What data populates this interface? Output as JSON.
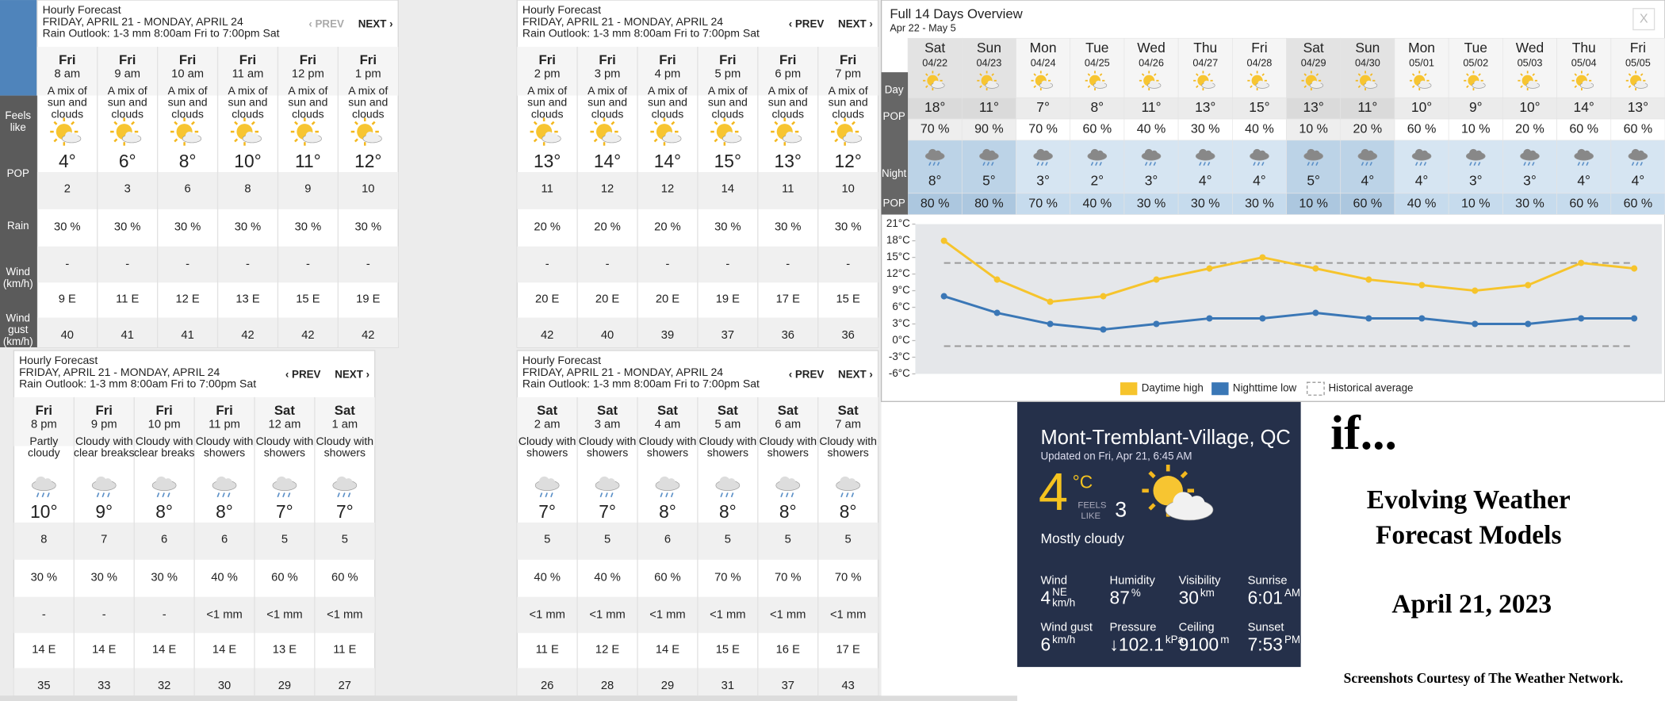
{
  "row_labels": [
    [
      "Feels",
      "like"
    ],
    [
      "POP"
    ],
    [
      "Rain"
    ],
    [
      "Wind",
      "(km/h)"
    ],
    [
      "Wind",
      "gust",
      "(km/h)"
    ]
  ],
  "hourly_panels": [
    {
      "title": "Hourly Forecast",
      "date_range": "FRIDAY, APRIL 21 - MONDAY, APRIL 24",
      "rain_outlook": "Rain Outlook: 1-3 mm 8:00am Fri to 7:00pm Sat",
      "prev": "‹ PREV",
      "next": "NEXT ›",
      "columns": [
        {
          "day": "Fri",
          "time": "8 am",
          "condition": [
            "A mix of",
            "sun and",
            "clouds"
          ],
          "temp": "4°",
          "feels_like": "2",
          "pop": "30 %",
          "rain": "-",
          "wind": "9 E",
          "gust": "40"
        },
        {
          "day": "Fri",
          "time": "9 am",
          "condition": [
            "A mix of",
            "sun and",
            "clouds"
          ],
          "temp": "6°",
          "feels_like": "3",
          "pop": "30 %",
          "rain": "-",
          "wind": "11 E",
          "gust": "41"
        },
        {
          "day": "Fri",
          "time": "10 am",
          "condition": [
            "A mix of",
            "sun and",
            "clouds"
          ],
          "temp": "8°",
          "feels_like": "6",
          "pop": "30 %",
          "rain": "-",
          "wind": "12 E",
          "gust": "41"
        },
        {
          "day": "Fri",
          "time": "11 am",
          "condition": [
            "A mix of",
            "sun and",
            "clouds"
          ],
          "temp": "10°",
          "feels_like": "8",
          "pop": "30 %",
          "rain": "-",
          "wind": "13 E",
          "gust": "42"
        },
        {
          "day": "Fri",
          "time": "12 pm",
          "condition": [
            "A mix of",
            "sun and",
            "clouds"
          ],
          "temp": "11°",
          "feels_like": "9",
          "pop": "30 %",
          "rain": "-",
          "wind": "15 E",
          "gust": "42"
        },
        {
          "day": "Fri",
          "time": "1 pm",
          "condition": [
            "A mix of",
            "sun and",
            "clouds"
          ],
          "temp": "12°",
          "feels_like": "10",
          "pop": "30 %",
          "rain": "-",
          "wind": "19 E",
          "gust": "42"
        }
      ]
    },
    {
      "title": "Hourly Forecast",
      "date_range": "FRIDAY, APRIL 21 - MONDAY, APRIL 24",
      "rain_outlook": "Rain Outlook: 1-3 mm 8:00am Fri to 7:00pm Sat",
      "prev": "‹ PREV",
      "next": "NEXT ›",
      "columns": [
        {
          "day": "Fri",
          "time": "2 pm",
          "condition": [
            "A mix of",
            "sun and",
            "clouds"
          ],
          "temp": "13°",
          "feels_like": "11",
          "pop": "20 %",
          "rain": "-",
          "wind": "20 E",
          "gust": "42"
        },
        {
          "day": "Fri",
          "time": "3 pm",
          "condition": [
            "A mix of",
            "sun and",
            "clouds"
          ],
          "temp": "14°",
          "feels_like": "12",
          "pop": "20 %",
          "rain": "-",
          "wind": "20 E",
          "gust": "40"
        },
        {
          "day": "Fri",
          "time": "4 pm",
          "condition": [
            "A mix of",
            "sun and",
            "clouds"
          ],
          "temp": "14°",
          "feels_like": "12",
          "pop": "20 %",
          "rain": "-",
          "wind": "20 E",
          "gust": "39"
        },
        {
          "day": "Fri",
          "time": "5 pm",
          "condition": [
            "A mix of",
            "sun and",
            "clouds"
          ],
          "temp": "15°",
          "feels_like": "14",
          "pop": "30 %",
          "rain": "-",
          "wind": "19 E",
          "gust": "37"
        },
        {
          "day": "Fri",
          "time": "6 pm",
          "condition": [
            "A mix of",
            "sun and",
            "clouds"
          ],
          "temp": "13°",
          "feels_like": "11",
          "pop": "30 %",
          "rain": "-",
          "wind": "17 E",
          "gust": "36"
        },
        {
          "day": "Fri",
          "time": "7 pm",
          "condition": [
            "A mix of",
            "sun and",
            "clouds"
          ],
          "temp": "12°",
          "feels_like": "10",
          "pop": "30 %",
          "rain": "-",
          "wind": "15 E",
          "gust": "36"
        }
      ]
    },
    {
      "title": "Hourly Forecast",
      "date_range": "FRIDAY, APRIL 21 - MONDAY, APRIL 24",
      "rain_outlook": "Rain Outlook: 1-3 mm 8:00am Fri to 7:00pm Sat",
      "prev": "‹ PREV",
      "next": "NEXT ›",
      "columns": [
        {
          "day": "Fri",
          "time": "8 pm",
          "condition": [
            "Partly",
            "cloudy"
          ],
          "temp": "10°",
          "feels_like": "8",
          "pop": "30 %",
          "rain": "-",
          "wind": "14 E",
          "gust": "35"
        },
        {
          "day": "Fri",
          "time": "9 pm",
          "condition": [
            "Cloudy with",
            "clear breaks"
          ],
          "temp": "9°",
          "feels_like": "7",
          "pop": "30 %",
          "rain": "-",
          "wind": "14 E",
          "gust": "33"
        },
        {
          "day": "Fri",
          "time": "10 pm",
          "condition": [
            "Cloudy with",
            "clear breaks"
          ],
          "temp": "8°",
          "feels_like": "6",
          "pop": "30 %",
          "rain": "-",
          "wind": "14 E",
          "gust": "32"
        },
        {
          "day": "Fri",
          "time": "11 pm",
          "condition": [
            "Cloudy with",
            "showers"
          ],
          "temp": "8°",
          "feels_like": "6",
          "pop": "40 %",
          "rain": "<1 mm",
          "wind": "14 E",
          "gust": "30"
        },
        {
          "day": "Sat",
          "time": "12 am",
          "condition": [
            "Cloudy with",
            "showers"
          ],
          "temp": "7°",
          "feels_like": "5",
          "pop": "60 %",
          "rain": "<1 mm",
          "wind": "13 E",
          "gust": "29"
        },
        {
          "day": "Sat",
          "time": "1 am",
          "condition": [
            "Cloudy with",
            "showers"
          ],
          "temp": "7°",
          "feels_like": "5",
          "pop": "60 %",
          "rain": "<1 mm",
          "wind": "11 E",
          "gust": "27"
        }
      ]
    },
    {
      "title": "Hourly Forecast",
      "date_range": "FRIDAY, APRIL 21 - MONDAY, APRIL 24",
      "rain_outlook": "Rain Outlook: 1-3 mm 8:00am Fri to 7:00pm Sat",
      "prev": "‹ PREV",
      "next": "NEXT ›",
      "columns": [
        {
          "day": "Sat",
          "time": "2 am",
          "condition": [
            "Cloudy with",
            "showers"
          ],
          "temp": "7°",
          "feels_like": "5",
          "pop": "40 %",
          "rain": "<1 mm",
          "wind": "11 E",
          "gust": "26"
        },
        {
          "day": "Sat",
          "time": "3 am",
          "condition": [
            "Cloudy with",
            "showers"
          ],
          "temp": "7°",
          "feels_like": "5",
          "pop": "40 %",
          "rain": "<1 mm",
          "wind": "12 E",
          "gust": "28"
        },
        {
          "day": "Sat",
          "time": "4 am",
          "condition": [
            "Cloudy with",
            "showers"
          ],
          "temp": "8°",
          "feels_like": "6",
          "pop": "60 %",
          "rain": "<1 mm",
          "wind": "14 E",
          "gust": "29"
        },
        {
          "day": "Sat",
          "time": "5 am",
          "condition": [
            "Cloudy with",
            "showers"
          ],
          "temp": "8°",
          "feels_like": "5",
          "pop": "70 %",
          "rain": "<1 mm",
          "wind": "15 E",
          "gust": "31"
        },
        {
          "day": "Sat",
          "time": "6 am",
          "condition": [
            "Cloudy with",
            "showers"
          ],
          "temp": "8°",
          "feels_like": "5",
          "pop": "70 %",
          "rain": "<1 mm",
          "wind": "16 E",
          "gust": "37"
        },
        {
          "day": "Sat",
          "time": "7 am",
          "condition": [
            "Cloudy with",
            "showers"
          ],
          "temp": "8°",
          "feels_like": "5",
          "pop": "70 %",
          "rain": "<1 mm",
          "wind": "17 E",
          "gust": "43"
        }
      ]
    }
  ],
  "overview": {
    "title": "Full 14 Days Overview",
    "date_range": "Apr 22 - May 5",
    "close": "X",
    "row_labels": [
      "Day",
      "POP",
      "Night",
      "POP"
    ],
    "columns": [
      {
        "day": "Sat",
        "date": "04/22",
        "day_temp": "18°",
        "day_pop": "70 %",
        "night_temp": "8°",
        "night_pop": "80 %"
      },
      {
        "day": "Sun",
        "date": "04/23",
        "day_temp": "11°",
        "day_pop": "90 %",
        "night_temp": "5°",
        "night_pop": "80 %"
      },
      {
        "day": "Mon",
        "date": "04/24",
        "day_temp": "7°",
        "day_pop": "70 %",
        "night_temp": "3°",
        "night_pop": "70 %"
      },
      {
        "day": "Tue",
        "date": "04/25",
        "day_temp": "8°",
        "day_pop": "60 %",
        "night_temp": "2°",
        "night_pop": "40 %"
      },
      {
        "day": "Wed",
        "date": "04/26",
        "day_temp": "11°",
        "day_pop": "40 %",
        "night_temp": "3°",
        "night_pop": "30 %"
      },
      {
        "day": "Thu",
        "date": "04/27",
        "day_temp": "13°",
        "day_pop": "30 %",
        "night_temp": "4°",
        "night_pop": "30 %"
      },
      {
        "day": "Fri",
        "date": "04/28",
        "day_temp": "15°",
        "day_pop": "40 %",
        "night_temp": "4°",
        "night_pop": "30 %"
      },
      {
        "day": "Sat",
        "date": "04/29",
        "day_temp": "13°",
        "day_pop": "10 %",
        "night_temp": "5°",
        "night_pop": "10 %"
      },
      {
        "day": "Sun",
        "date": "04/30",
        "day_temp": "11°",
        "day_pop": "20 %",
        "night_temp": "4°",
        "night_pop": "60 %"
      },
      {
        "day": "Mon",
        "date": "05/01",
        "day_temp": "10°",
        "day_pop": "60 %",
        "night_temp": "4°",
        "night_pop": "40 %"
      },
      {
        "day": "Tue",
        "date": "05/02",
        "day_temp": "9°",
        "day_pop": "10 %",
        "night_temp": "3°",
        "night_pop": "10 %"
      },
      {
        "day": "Wed",
        "date": "05/03",
        "day_temp": "10°",
        "day_pop": "20 %",
        "night_temp": "3°",
        "night_pop": "30 %"
      },
      {
        "day": "Thu",
        "date": "05/04",
        "day_temp": "14°",
        "day_pop": "60 %",
        "night_temp": "4°",
        "night_pop": "60 %"
      },
      {
        "day": "Fri",
        "date": "05/05",
        "day_temp": "13°",
        "day_pop": "60 %",
        "night_temp": "4°",
        "night_pop": "60 %"
      }
    ]
  },
  "chart_data": {
    "type": "line",
    "ylim": [
      -6,
      21
    ],
    "yticks": [
      {
        "value": 21,
        "label": "21°C"
      },
      {
        "value": 18,
        "label": "18°C"
      },
      {
        "value": 15,
        "label": "15°C"
      },
      {
        "value": 12,
        "label": "12°C"
      },
      {
        "value": 9,
        "label": "9°C"
      },
      {
        "value": 6,
        "label": "6°C"
      },
      {
        "value": 3,
        "label": "3°C"
      },
      {
        "value": 0,
        "label": "0°C"
      },
      {
        "value": -3,
        "label": "-3°C"
      },
      {
        "value": -6,
        "label": "-6°C"
      }
    ],
    "series": [
      {
        "name": "Daytime high",
        "color": "#f6c42c",
        "values": [
          18,
          11,
          7,
          8,
          11,
          13,
          15,
          13,
          11,
          10,
          9,
          10,
          14,
          13
        ]
      },
      {
        "name": "Nighttime low",
        "color": "#3a77b6",
        "values": [
          8,
          5,
          3,
          2,
          3,
          4,
          4,
          5,
          4,
          4,
          3,
          3,
          4,
          4
        ]
      }
    ],
    "reference_lines": {
      "name": "Historical average",
      "color": "#9a9a9a",
      "values": [
        14,
        -1
      ]
    }
  },
  "current": {
    "location": "Mont-Tremblant-Village, QC",
    "updated": "Updated on Fri, Apr 21, 6:45 AM",
    "temp": "4",
    "temp_unit": "°C",
    "feels_like_label": [
      "FEELS",
      "LIKE"
    ],
    "feels_like": "3",
    "condition": "Mostly cloudy",
    "details": [
      {
        "label": "Wind",
        "value": "4",
        "unit": [
          "NE",
          "km/h"
        ]
      },
      {
        "label": "Humidity",
        "value": "87",
        "unit": [
          "%"
        ]
      },
      {
        "label": "Visibility",
        "value": "30",
        "unit": [
          "km"
        ]
      },
      {
        "label": "Sunrise",
        "value": "6:01",
        "unit": [
          "AM"
        ]
      },
      {
        "label": "Wind gust",
        "value": "6",
        "unit": [
          "km/h"
        ]
      },
      {
        "label": "Pressure",
        "value": "↓102.1",
        "unit": [
          "kPa"
        ]
      },
      {
        "label": "Ceiling",
        "value": "9100",
        "unit": [
          "m"
        ]
      },
      {
        "label": "Sunset",
        "value": "7:53",
        "unit": [
          "PM"
        ]
      }
    ]
  },
  "slide": {
    "intro": "if...",
    "title": [
      "Evolving Weather",
      "Forecast Models"
    ],
    "date": "April 21, 2023",
    "credit": "Screenshots Courtesy of The Weather Network."
  }
}
